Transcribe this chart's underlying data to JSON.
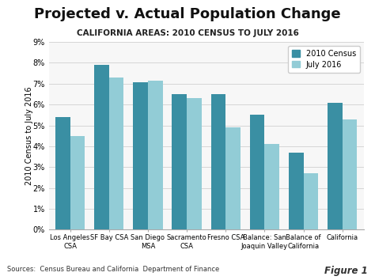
{
  "title": "Projected v. Actual Population Change",
  "subtitle": "CALIFORNIA AREAS: 2010 CENSUS TO JULY 2016",
  "ylabel": "2010 Census to July 2016",
  "categories": [
    "Los Angeles\nCSA",
    "SF Bay CSA",
    "San Diego\nMSA",
    "Sacramento\nCSA",
    "Fresno CSA",
    "Balance: San\nJoaquin Valley",
    "Balance of\nCalifornia",
    "California"
  ],
  "census_2010": [
    5.4,
    7.9,
    7.05,
    6.5,
    6.5,
    5.5,
    3.7,
    6.1
  ],
  "july_2016": [
    4.5,
    7.3,
    7.15,
    6.3,
    4.9,
    4.1,
    2.7,
    5.3
  ],
  "color_census": "#3a8fa3",
  "color_july": "#92ccd6",
  "ylim": [
    0,
    9
  ],
  "yticks": [
    0,
    1,
    2,
    3,
    4,
    5,
    6,
    7,
    8,
    9
  ],
  "ytick_labels": [
    "0%",
    "1%",
    "2%",
    "3%",
    "4%",
    "5%",
    "6%",
    "7%",
    "8%",
    "9%"
  ],
  "legend_labels": [
    "2010 Census",
    "July 2016"
  ],
  "source_text": "Sources:  Census Bureau and California  Department of Finance",
  "figure_label": "Figure 1",
  "bg_color": "#ffffff",
  "plot_bg_color": "#f7f7f7",
  "grid_color": "#d0d0d0",
  "title_fontsize": 13,
  "subtitle_fontsize": 7.5,
  "axis_label_fontsize": 7,
  "tick_fontsize": 7,
  "cat_fontsize": 6,
  "legend_fontsize": 7,
  "source_fontsize": 6,
  "bar_width": 0.38
}
